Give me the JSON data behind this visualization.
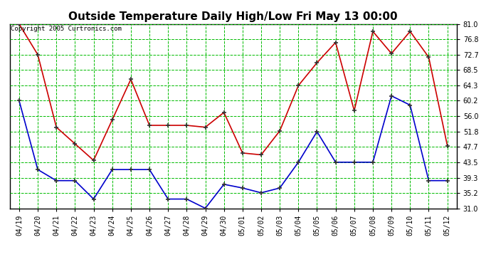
{
  "title": "Outside Temperature Daily High/Low Fri May 13 00:00",
  "copyright": "Copyright 2005 Curtronics.com",
  "x_labels": [
    "04/19",
    "04/20",
    "04/21",
    "04/22",
    "04/23",
    "04/24",
    "04/25",
    "04/26",
    "04/27",
    "04/28",
    "04/29",
    "04/30",
    "05/01",
    "05/02",
    "05/03",
    "05/04",
    "05/05",
    "05/06",
    "05/07",
    "05/08",
    "05/09",
    "05/10",
    "05/11",
    "05/12"
  ],
  "high_temps": [
    81.0,
    72.7,
    53.0,
    48.5,
    44.0,
    55.0,
    66.0,
    53.5,
    53.5,
    53.5,
    53.0,
    57.0,
    46.0,
    45.5,
    52.0,
    64.3,
    70.5,
    76.0,
    57.5,
    79.0,
    73.0,
    79.0,
    72.0,
    48.0
  ],
  "low_temps": [
    60.2,
    41.5,
    38.5,
    38.5,
    33.5,
    41.5,
    41.5,
    41.5,
    33.5,
    33.5,
    31.0,
    37.5,
    36.5,
    35.2,
    36.5,
    43.5,
    51.8,
    43.5,
    43.5,
    43.5,
    61.5,
    59.0,
    38.5,
    38.5
  ],
  "y_ticks": [
    31.0,
    35.2,
    39.3,
    43.5,
    47.7,
    51.8,
    56.0,
    60.2,
    64.3,
    68.5,
    72.7,
    76.8,
    81.0
  ],
  "ylim": [
    31.0,
    81.0
  ],
  "high_color": "#cc0000",
  "low_color": "#0000cc",
  "grid_color": "#00bb00",
  "bg_color": "#ffffff",
  "plot_bg_color": "#ffffff",
  "title_fontsize": 11,
  "copyright_fontsize": 6.5,
  "tick_fontsize": 7,
  "marker": "+"
}
